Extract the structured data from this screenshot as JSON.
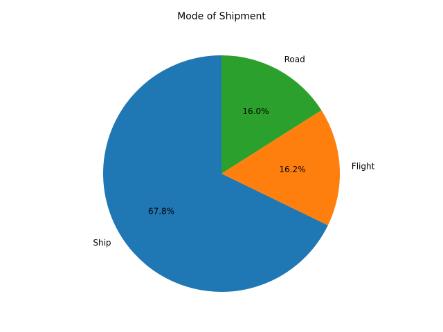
{
  "chart_data": {
    "type": "pie",
    "title": "Mode of Shipment",
    "start_angle_deg": 90,
    "direction": "counterclockwise",
    "slices": [
      {
        "label": "Ship",
        "value": 67.8,
        "pct_label": "67.8%",
        "color": "#1f77b4"
      },
      {
        "label": "Flight",
        "value": 16.2,
        "pct_label": "16.2%",
        "color": "#ff7f0e"
      },
      {
        "label": "Road",
        "value": 16.0,
        "pct_label": "16.0%",
        "color": "#2ca02c"
      }
    ]
  }
}
